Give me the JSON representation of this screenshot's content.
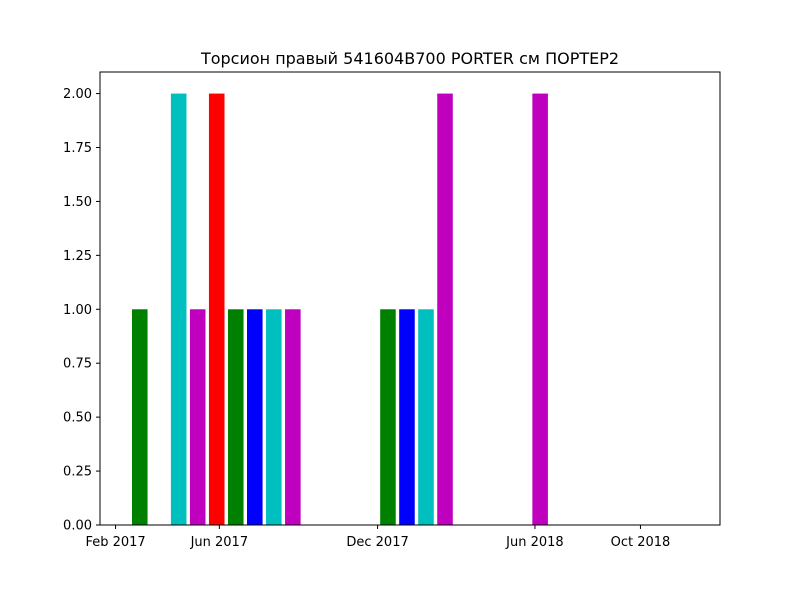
{
  "chart_data": {
    "type": "bar",
    "title": "Торсион правый  541604B700 PORTER см ПОРТЕР2",
    "xlabel": "",
    "ylabel": "",
    "ylim": [
      0,
      2.1
    ],
    "xlim": [
      "2017-01-14",
      "2019-01-01"
    ],
    "grid": false,
    "legend": false,
    "x_ticks": [
      {
        "date": "2017-02-01",
        "label": "Feb 2017"
      },
      {
        "date": "2017-06-01",
        "label": "Jun 2017"
      },
      {
        "date": "2017-12-01",
        "label": "Dec 2017"
      },
      {
        "date": "2018-06-01",
        "label": "Jun 2018"
      },
      {
        "date": "2018-10-01",
        "label": "Oct 2018"
      }
    ],
    "y_ticks": [
      {
        "value": 0.0,
        "label": "0.00"
      },
      {
        "value": 0.25,
        "label": "0.25"
      },
      {
        "value": 0.5,
        "label": "0.50"
      },
      {
        "value": 0.75,
        "label": "0.75"
      },
      {
        "value": 1.0,
        "label": "1.00"
      },
      {
        "value": 1.25,
        "label": "1.25"
      },
      {
        "value": 1.5,
        "label": "1.50"
      },
      {
        "value": 1.75,
        "label": "1.75"
      },
      {
        "value": 2.0,
        "label": "2.00"
      }
    ],
    "bars": [
      {
        "date": "2017-03-01",
        "value": 1,
        "color": "#008000"
      },
      {
        "date": "2017-04-15",
        "value": 2,
        "color": "#00bfbf"
      },
      {
        "date": "2017-05-07",
        "value": 1,
        "color": "#bf00bf"
      },
      {
        "date": "2017-05-29",
        "value": 2,
        "color": "#ff0000"
      },
      {
        "date": "2017-06-20",
        "value": 1,
        "color": "#008000"
      },
      {
        "date": "2017-07-12",
        "value": 1,
        "color": "#0000ff"
      },
      {
        "date": "2017-08-03",
        "value": 1,
        "color": "#00bfbf"
      },
      {
        "date": "2017-08-25",
        "value": 1,
        "color": "#bf00bf"
      },
      {
        "date": "2017-12-13",
        "value": 1,
        "color": "#008000"
      },
      {
        "date": "2018-01-04",
        "value": 1,
        "color": "#0000ff"
      },
      {
        "date": "2018-01-26",
        "value": 1,
        "color": "#00bfbf"
      },
      {
        "date": "2018-02-17",
        "value": 2,
        "color": "#bf00bf"
      },
      {
        "date": "2018-06-07",
        "value": 2,
        "color": "#bf00bf"
      }
    ],
    "bar_width_days": 18
  }
}
